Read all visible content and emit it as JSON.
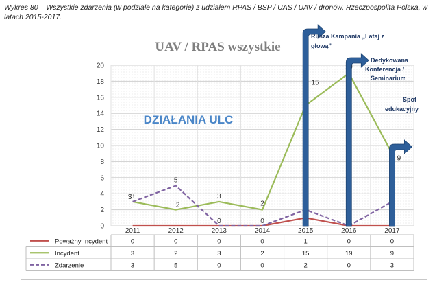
{
  "caption": "Wykres 80 – Wszystkie zdarzenia (w podziale na kategorie) z udziałem RPAS / BSP / UAS / UAV / dronów, Rzeczpospolita Polska, w latach 2015-2017.",
  "chart_data": {
    "type": "line",
    "title": "UAV / RPAS wszystkie",
    "categories": [
      "2011",
      "2012",
      "2013",
      "2014",
      "2015",
      "2016",
      "2017"
    ],
    "series": [
      {
        "name": "Poważny Incydent",
        "values": [
          0,
          0,
          0,
          0,
          1,
          0,
          0
        ],
        "color": "#c0504d",
        "style": "solid"
      },
      {
        "name": "Incydent",
        "values": [
          3,
          2,
          3,
          2,
          15,
          19,
          9
        ],
        "color": "#9bbb59",
        "style": "solid"
      },
      {
        "name": "Zdarzenie",
        "values": [
          3,
          5,
          0,
          0,
          2,
          0,
          3
        ],
        "color": "#8064a2",
        "style": "dashed"
      }
    ],
    "ylim": [
      0,
      20
    ],
    "yticks": [
      0,
      2,
      4,
      6,
      8,
      10,
      12,
      14,
      16,
      18,
      20
    ],
    "grid": true,
    "legend": "data-table-below",
    "overlay_text": "DZIAŁANIA ULC",
    "annotations": [
      {
        "text": "Rusza Kampania „Lataj z głową”",
        "year": "2015"
      },
      {
        "text": "Dedykowana Konferencja / Seminarium",
        "year": "2016"
      },
      {
        "text": "Spot edukacyjny",
        "year": "2017"
      }
    ],
    "arrow_color": "#2e5f9a"
  }
}
